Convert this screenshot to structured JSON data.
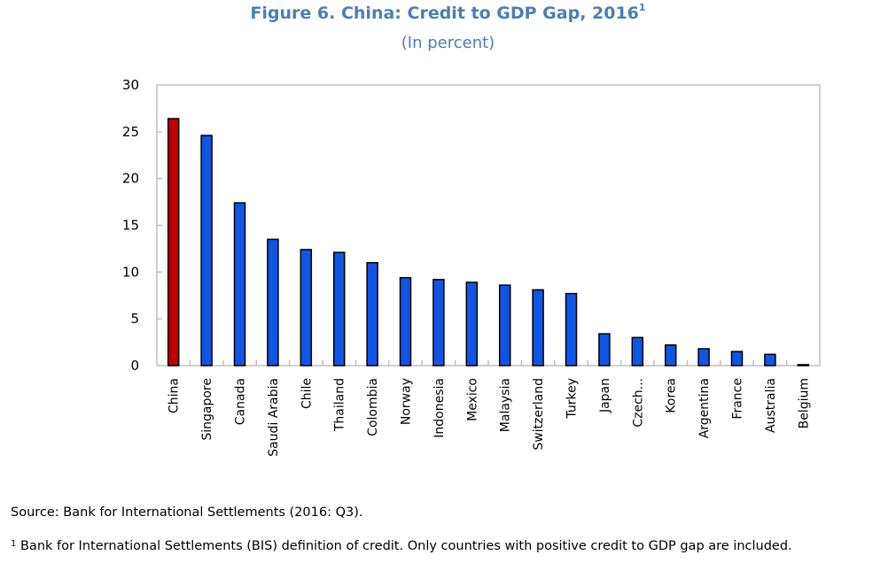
{
  "chart_data": {
    "type": "bar",
    "title": "Figure 6. China: Credit to GDP Gap, 2016",
    "title_superscript": "1",
    "subtitle": "(In percent)",
    "xlabel": "",
    "ylabel": "",
    "ylim": [
      0,
      30
    ],
    "yticks": [
      0,
      5,
      10,
      15,
      20,
      25,
      30
    ],
    "grid": false,
    "legend": "none",
    "categories": [
      "China",
      "Singapore",
      "Canada",
      "Saudi Arabia",
      "Chile",
      "Thailand",
      "Colombia",
      "Norway",
      "Indonesia",
      "Mexico",
      "Malaysia",
      "Switzerland",
      "Turkey",
      "Japan",
      "Czech...",
      "Korea",
      "Argentina",
      "France",
      "Australia",
      "Belgium"
    ],
    "values": [
      26.4,
      24.6,
      17.4,
      13.5,
      12.4,
      12.1,
      11.0,
      9.4,
      9.2,
      8.9,
      8.6,
      8.1,
      7.7,
      3.4,
      3.0,
      2.2,
      1.8,
      1.5,
      1.2,
      0.1
    ],
    "colors": {
      "highlight": "#C00000",
      "default": "#1155E6",
      "highlight_category": "China",
      "title": "#4A7FB5"
    }
  },
  "notes": {
    "source": "Source: Bank for International Settlements (2016: Q3).",
    "footnote_marker": "1",
    "footnote": " Bank for International Settlements (BIS) definition of credit. Only countries with positive credit to GDP gap are included."
  }
}
